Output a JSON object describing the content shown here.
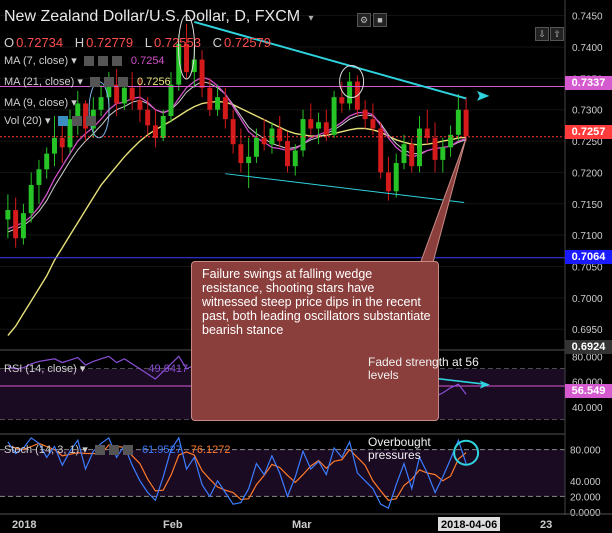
{
  "header": {
    "title": "New Zealand Dollar/U.S. Dollar, D, FXCM",
    "ohlc": [
      {
        "k": "O",
        "v": "0.72734"
      },
      {
        "k": "H",
        "v": "0.72779"
      },
      {
        "k": "L",
        "v": "0.72553"
      },
      {
        "k": "C",
        "v": "0.72579"
      }
    ]
  },
  "legends": {
    "ma7": {
      "label": "MA (7, close)",
      "value": "0.7254"
    },
    "ma21": {
      "label": "MA (21, close)",
      "value": "0.7256"
    },
    "ma9": {
      "label": "MA (9, close)",
      "value": ""
    },
    "vol": {
      "label": "Vol (20)",
      "value": ""
    },
    "rsi": {
      "label": "RSI (14, close)",
      "value": "49.9417"
    },
    "stoch": {
      "label": "Stoch (14, 3, 1)",
      "k": "61.9527",
      "d": "76.1272"
    }
  },
  "badges": {
    "resistance": "0.7337",
    "last": "0.7257",
    "support": "0.7064",
    "bottom": "0.6924",
    "rsi": "56.549"
  },
  "annotations": {
    "note_box": "Failure swings at falling wedge resistance, shooting stars have witnessed steep price dips in the recent past, both leading oscillators substantiate bearish stance",
    "rsi_note": "Faded strength at 56 levels",
    "stoch_note": "Overbought pressures"
  },
  "colors": {
    "bg": "#000000",
    "up": "#27c427",
    "down": "#d41a1a",
    "ma7": "#d14fc9",
    "ma21": "#e8e07a",
    "ma9": "#cfcfcf",
    "trend": "#2fd3de",
    "resistance": "#d55ad0",
    "last": "#ff3b3b",
    "support": "#3b3bff",
    "note_bg": "#8b3f3c",
    "rsi_line": "#8a4fd6",
    "stoch_k": "#3b7dff",
    "stoch_d": "#ff7a2b"
  },
  "chart_data": [
    {
      "type": "candlestick",
      "title": "New Zealand Dollar/U.S. Dollar, D, FXCM",
      "xlabels": [
        "2018",
        "Feb",
        "Mar",
        "2018-04-06",
        "23"
      ],
      "yticks": [
        "0.7450",
        "0.7400",
        "0.7350",
        "0.7300",
        "0.7250",
        "0.7200",
        "0.7150",
        "0.7100",
        "0.7050",
        "0.7000",
        "0.6950"
      ],
      "ylim": [
        0.692,
        0.7475
      ],
      "candles": [
        [
          0.7125,
          0.7165,
          0.7095,
          0.714
        ],
        [
          0.714,
          0.716,
          0.708,
          0.7095
        ],
        [
          0.7095,
          0.715,
          0.7085,
          0.7135
        ],
        [
          0.7135,
          0.72,
          0.712,
          0.718
        ],
        [
          0.718,
          0.722,
          0.715,
          0.7205
        ],
        [
          0.7205,
          0.724,
          0.719,
          0.723
        ],
        [
          0.723,
          0.729,
          0.721,
          0.7255
        ],
        [
          0.7255,
          0.7285,
          0.7215,
          0.724
        ],
        [
          0.724,
          0.73,
          0.723,
          0.7285
        ],
        [
          0.7285,
          0.733,
          0.726,
          0.731
        ],
        [
          0.731,
          0.7315,
          0.725,
          0.727
        ],
        [
          0.727,
          0.732,
          0.7255,
          0.73
        ],
        [
          0.73,
          0.734,
          0.729,
          0.732
        ],
        [
          0.732,
          0.736,
          0.7295,
          0.734
        ],
        [
          0.734,
          0.7365,
          0.729,
          0.731
        ],
        [
          0.731,
          0.7345,
          0.73,
          0.7335
        ],
        [
          0.7335,
          0.736,
          0.73,
          0.7315
        ],
        [
          0.7315,
          0.735,
          0.728,
          0.73
        ],
        [
          0.73,
          0.732,
          0.726,
          0.7275
        ],
        [
          0.7275,
          0.73,
          0.724,
          0.7255
        ],
        [
          0.7255,
          0.73,
          0.725,
          0.729
        ],
        [
          0.729,
          0.736,
          0.728,
          0.734
        ],
        [
          0.734,
          0.742,
          0.733,
          0.7405
        ],
        [
          0.7405,
          0.7437,
          0.735,
          0.736
        ],
        [
          0.736,
          0.74,
          0.7335,
          0.738
        ],
        [
          0.738,
          0.7395,
          0.732,
          0.7335
        ],
        [
          0.7335,
          0.735,
          0.729,
          0.73
        ],
        [
          0.73,
          0.734,
          0.729,
          0.732
        ],
        [
          0.732,
          0.7335,
          0.727,
          0.7285
        ],
        [
          0.7285,
          0.73,
          0.723,
          0.7245
        ],
        [
          0.7245,
          0.727,
          0.72,
          0.7215
        ],
        [
          0.7215,
          0.7255,
          0.7175,
          0.7225
        ],
        [
          0.7225,
          0.727,
          0.7215,
          0.7255
        ],
        [
          0.7255,
          0.7285,
          0.7235,
          0.7245
        ],
        [
          0.7245,
          0.728,
          0.723,
          0.727
        ],
        [
          0.727,
          0.729,
          0.724,
          0.725
        ],
        [
          0.725,
          0.7265,
          0.72,
          0.721
        ],
        [
          0.721,
          0.7245,
          0.7195,
          0.7235
        ],
        [
          0.7235,
          0.73,
          0.7225,
          0.7285
        ],
        [
          0.7285,
          0.731,
          0.726,
          0.727
        ],
        [
          0.727,
          0.7295,
          0.7245,
          0.728
        ],
        [
          0.728,
          0.73,
          0.725,
          0.726
        ],
        [
          0.726,
          0.733,
          0.7255,
          0.732
        ],
        [
          0.732,
          0.7345,
          0.7295,
          0.731
        ],
        [
          0.731,
          0.736,
          0.73,
          0.7345
        ],
        [
          0.7345,
          0.7355,
          0.729,
          0.73
        ],
        [
          0.73,
          0.7315,
          0.727,
          0.7285
        ],
        [
          0.7285,
          0.731,
          0.726,
          0.727
        ],
        [
          0.727,
          0.728,
          0.719,
          0.72
        ],
        [
          0.72,
          0.7225,
          0.7155,
          0.717
        ],
        [
          0.717,
          0.723,
          0.716,
          0.7215
        ],
        [
          0.7215,
          0.726,
          0.7205,
          0.7245
        ],
        [
          0.7245,
          0.7255,
          0.72,
          0.721
        ],
        [
          0.721,
          0.729,
          0.72,
          0.727
        ],
        [
          0.727,
          0.73,
          0.7245,
          0.7255
        ],
        [
          0.7255,
          0.728,
          0.72,
          0.722
        ],
        [
          0.722,
          0.7255,
          0.72,
          0.724
        ],
        [
          0.724,
          0.7275,
          0.7225,
          0.726
        ],
        [
          0.726,
          0.7325,
          0.725,
          0.73
        ],
        [
          0.73,
          0.732,
          0.725,
          0.7258
        ]
      ],
      "ma7": [
        0.711,
        0.7115,
        0.712,
        0.713,
        0.7145,
        0.7165,
        0.719,
        0.721,
        0.723,
        0.725,
        0.7262,
        0.7272,
        0.7285,
        0.73,
        0.731,
        0.7312,
        0.7318,
        0.732,
        0.7312,
        0.73,
        0.7295,
        0.73,
        0.7318,
        0.7335,
        0.7345,
        0.7352,
        0.7348,
        0.7338,
        0.7325,
        0.7305,
        0.7285,
        0.7265,
        0.7255,
        0.7248,
        0.724,
        0.7238,
        0.7235,
        0.7238,
        0.7245,
        0.7255,
        0.726,
        0.7265,
        0.7272,
        0.728,
        0.729,
        0.7295,
        0.7296,
        0.7292,
        0.7275,
        0.7255,
        0.724,
        0.723,
        0.7225,
        0.7228,
        0.7235,
        0.7238,
        0.724,
        0.7242,
        0.725,
        0.7254
      ],
      "ma21": [
        0.694,
        0.6955,
        0.6975,
        0.6995,
        0.7015,
        0.7035,
        0.706,
        0.708,
        0.71,
        0.712,
        0.714,
        0.716,
        0.718,
        0.7195,
        0.721,
        0.7225,
        0.7238,
        0.725,
        0.726,
        0.7268,
        0.7275,
        0.7282,
        0.729,
        0.7298,
        0.7305,
        0.731,
        0.7312,
        0.7313,
        0.7312,
        0.7308,
        0.7302,
        0.7296,
        0.729,
        0.7284,
        0.7278,
        0.7272,
        0.7266,
        0.7262,
        0.726,
        0.7258,
        0.7258,
        0.7259,
        0.7262,
        0.7265,
        0.7268,
        0.727,
        0.727,
        0.7268,
        0.7264,
        0.7258,
        0.7252,
        0.7248,
        0.7245,
        0.7244,
        0.7245,
        0.7247,
        0.725,
        0.7252,
        0.7255,
        0.7256
      ],
      "ma9": [
        0.7105,
        0.711,
        0.7115,
        0.7125,
        0.7138,
        0.7155,
        0.7178,
        0.7198,
        0.7218,
        0.7236,
        0.725,
        0.7262,
        0.7275,
        0.729,
        0.73,
        0.7305,
        0.7312,
        0.7315,
        0.731,
        0.73,
        0.7296,
        0.73,
        0.7312,
        0.7328,
        0.7338,
        0.7345,
        0.7342,
        0.7335,
        0.7325,
        0.7308,
        0.729,
        0.7272,
        0.7262,
        0.7254,
        0.7246,
        0.7242,
        0.7238,
        0.724,
        0.7245,
        0.7252,
        0.7256,
        0.7262,
        0.7268,
        0.7276,
        0.7285,
        0.729,
        0.7292,
        0.729,
        0.7278,
        0.726,
        0.7246,
        0.7236,
        0.723,
        0.723,
        0.7235,
        0.7238,
        0.724,
        0.7242,
        0.7248,
        0.7252
      ]
    },
    {
      "type": "line",
      "title": "RSI (14, close)",
      "yticks": [
        "80.000",
        "60.000",
        "40.000"
      ],
      "ylim": [
        20,
        85
      ],
      "values": [
        72,
        70,
        71,
        74,
        76,
        77,
        78,
        75,
        77,
        79,
        73,
        76,
        78,
        80,
        75,
        78,
        74,
        70,
        66,
        62,
        68,
        74,
        80,
        70,
        73,
        64,
        58,
        62,
        56,
        50,
        46,
        49,
        55,
        53,
        57,
        54,
        48,
        53,
        60,
        56,
        58,
        55,
        62,
        60,
        64,
        56,
        54,
        52,
        44,
        40,
        48,
        54,
        47,
        56,
        53,
        48,
        51,
        55,
        58,
        50
      ]
    },
    {
      "type": "line",
      "title": "Stoch (14, 3, 1)",
      "yticks": [
        "80.000",
        "40.000",
        "20.000",
        "0.0000"
      ],
      "ylim": [
        0,
        100
      ],
      "series": [
        {
          "values": [
            90,
            75,
            82,
            95,
            88,
            70,
            84,
            60,
            78,
            92,
            55,
            78,
            88,
            95,
            70,
            85,
            60,
            40,
            25,
            15,
            45,
            80,
            95,
            55,
            70,
            35,
            20,
            40,
            25,
            10,
            12,
            30,
            62,
            48,
            72,
            50,
            20,
            45,
            78,
            55,
            65,
            48,
            82,
            70,
            90,
            50,
            40,
            30,
            10,
            5,
            35,
            62,
            30,
            70,
            50,
            25,
            45,
            68,
            92,
            62
          ]
        },
        {
          "values": [
            85,
            82,
            80,
            84,
            88,
            84,
            80,
            72,
            74,
            76,
            75,
            75,
            74,
            86,
            84,
            83,
            72,
            62,
            42,
            27,
            28,
            47,
            73,
            77,
            73,
            53,
            42,
            32,
            28,
            25,
            16,
            17,
            35,
            47,
            61,
            57,
            47,
            38,
            48,
            59,
            66,
            56,
            65,
            67,
            80,
            70,
            60,
            40,
            27,
            15,
            17,
            34,
            42,
            54,
            50,
            48,
            40,
            46,
            68,
            76
          ]
        }
      ]
    }
  ]
}
